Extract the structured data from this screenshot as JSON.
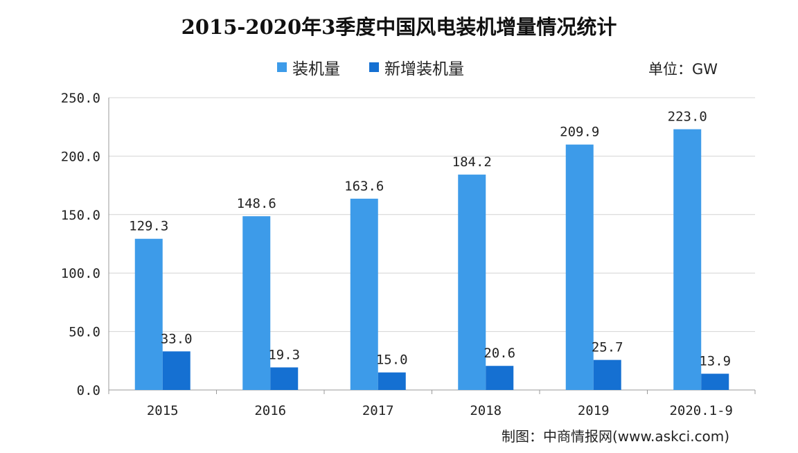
{
  "colors": {
    "series1": "#3d9be9",
    "series2": "#1570d2",
    "grid": "#d4d4d4",
    "axis": "#999999"
  },
  "chart_data": {
    "type": "bar",
    "title": "2015-2020年3季度中国风电装机增量情况统计",
    "unit_label": "单位：GW",
    "source": "制图：中商情报网(www.askci.com)",
    "categories": [
      "2015",
      "2016",
      "2017",
      "2018",
      "2019",
      "2020.1-9"
    ],
    "series": [
      {
        "name": "装机量",
        "values": [
          129.3,
          148.6,
          163.6,
          184.2,
          209.9,
          223.0
        ]
      },
      {
        "name": "新增装机量",
        "values": [
          33.0,
          19.3,
          15.0,
          20.6,
          25.7,
          13.9
        ]
      }
    ],
    "ylim": [
      0,
      250
    ],
    "yticks": [
      0,
      50,
      100,
      150,
      200,
      250
    ],
    "legend_position": "top-center",
    "grid": true
  }
}
